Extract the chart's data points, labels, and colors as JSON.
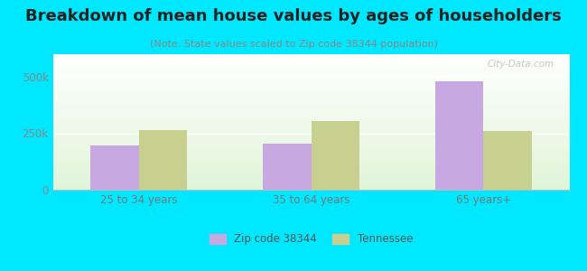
{
  "title": "Breakdown of mean house values by ages of householders",
  "subtitle": "(Note: State values scaled to Zip code 38344 population)",
  "categories": [
    "25 to 34 years",
    "35 to 64 years",
    "65 years+"
  ],
  "zip_values": [
    195000,
    205000,
    480000
  ],
  "state_values": [
    265000,
    305000,
    260000
  ],
  "zip_color": "#c8a8e0",
  "state_color": "#c8d090",
  "background_outer": "#00e8ff",
  "ylim": [
    0,
    600000
  ],
  "yticks": [
    0,
    250000,
    500000
  ],
  "ytick_labels": [
    "0",
    "250k",
    "500k"
  ],
  "bar_width": 0.28,
  "legend_zip_label": "Zip code 38344",
  "legend_state_label": "Tennessee",
  "watermark": "City-Data.com",
  "title_fontsize": 13,
  "subtitle_fontsize": 8
}
